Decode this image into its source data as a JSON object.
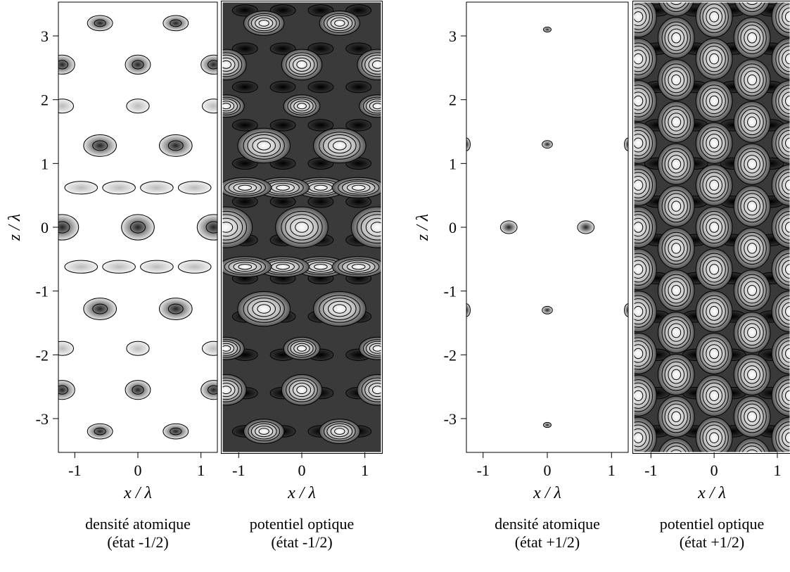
{
  "chart_data": [
    {
      "type": "contour",
      "colormap": "light",
      "title": "densité atomique",
      "subtitle": "(état -1/2)",
      "xlabel": "x / λ",
      "ylabel": "z / λ",
      "xlim": [
        -1.26,
        1.26
      ],
      "ylim": [
        -3.53,
        3.53
      ],
      "xticks": [
        -1,
        0,
        1
      ],
      "yticks": [
        -3,
        -2,
        -1,
        0,
        1,
        2,
        3
      ]
    },
    {
      "type": "contour",
      "colormap": "dark",
      "title": "potentiel optique",
      "subtitle": "(état -1/2)",
      "xlabel": "x / λ",
      "xlim": [
        -1.26,
        1.26
      ],
      "ylim": [
        -3.53,
        3.53
      ],
      "xticks": [
        -1,
        0,
        1
      ]
    },
    {
      "type": "contour",
      "colormap": "sparse",
      "title": "densité atomique",
      "subtitle": "(état +1/2)",
      "xlabel": "x / λ",
      "ylabel": "z / λ",
      "xlim": [
        -1.26,
        1.26
      ],
      "ylim": [
        -3.53,
        3.53
      ],
      "xticks": [
        -1,
        0,
        1
      ],
      "yticks": [
        -3,
        -2,
        -1,
        0,
        1,
        2,
        3
      ]
    },
    {
      "type": "contour",
      "colormap": "dark-grid",
      "title": "potentiel optique",
      "subtitle": "(état +1/2)",
      "xlabel": "x / λ",
      "xlim": [
        -1.27,
        1.2
      ],
      "ylim": [
        -3.53,
        3.53
      ],
      "xticks": [
        -1,
        0,
        1
      ]
    }
  ]
}
